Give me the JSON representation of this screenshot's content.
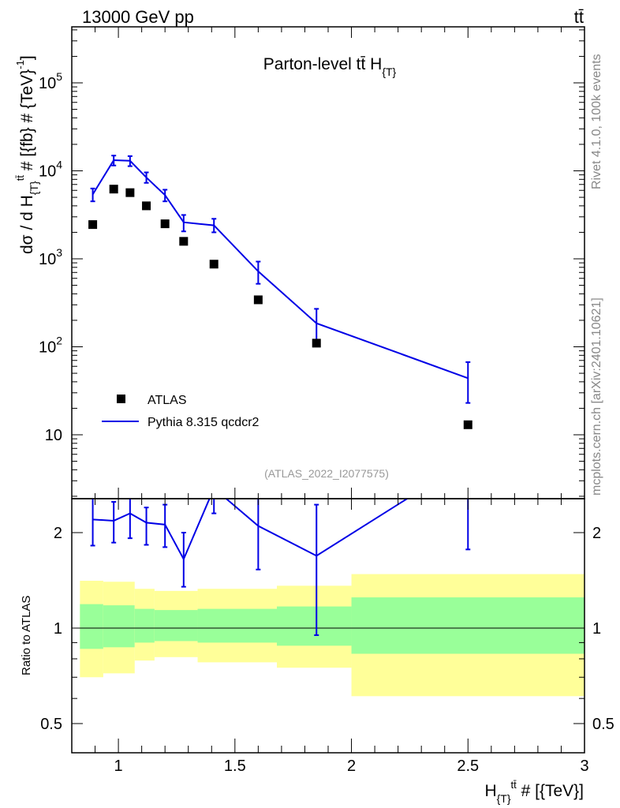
{
  "header": {
    "left": "13000 GeV pp",
    "right": "tt̄"
  },
  "side_labels": {
    "upper": "Rivet 4.1.0,  100k events",
    "lower": "mcplots.cern.ch [arXiv:2401.10621]"
  },
  "colors": {
    "mc_line": "#0000e6",
    "green_band": "#99ff99",
    "yellow_band": "#ffff99",
    "data_marker": "#000000",
    "watermark": "#999999"
  },
  "chart_data": [
    {
      "type": "scatter",
      "title": "Parton-level tt̄  H",
      "title_sub": "{T}",
      "ylabel": "dσ / d H",
      "ylabel_sub": "{T}",
      "ylabel_sup": "tt̄",
      "ylabel_tail": " # [{fb} # {TeV}",
      "ylabel_tail_sup": "-1",
      "ylabel_end": "]",
      "yscale": "log",
      "ylim": [
        2.5,
        400000
      ],
      "xlim": [
        0.8,
        3.0
      ],
      "ytick_labels": [
        "10",
        "10",
        "10",
        "10",
        "10"
      ],
      "ytick_exponents": [
        "",
        "2",
        "3",
        "4",
        "5"
      ],
      "ytick_values": [
        10,
        100,
        1000,
        10000,
        100000
      ],
      "watermark": "(ATLAS_2022_I2077575)",
      "legend": {
        "position": "bottom-left",
        "entries": [
          "ATLAS",
          "Pythia 8.315 qcdcr2"
        ]
      },
      "series": [
        {
          "name": "ATLAS",
          "style": "markers",
          "x": [
            0.89,
            0.98,
            1.05,
            1.12,
            1.2,
            1.28,
            1.41,
            1.6,
            1.85,
            2.5
          ],
          "y": [
            2450,
            6200,
            5650,
            4000,
            2500,
            1580,
            870,
            342,
            110,
            13
          ]
        },
        {
          "name": "Pythia 8.315 qcdcr2",
          "style": "line-errorbars",
          "x": [
            0.89,
            0.98,
            1.05,
            1.12,
            1.2,
            1.28,
            1.41,
            1.6,
            1.85,
            2.5
          ],
          "y": [
            5400,
            13200,
            13000,
            8400,
            5300,
            2600,
            2400,
            720,
            185,
            44
          ],
          "y_low": [
            4500,
            11500,
            11300,
            7300,
            4500,
            2050,
            2000,
            520,
            110,
            23
          ],
          "y_high": [
            6300,
            14900,
            14700,
            9600,
            6100,
            3150,
            2850,
            930,
            270,
            67
          ]
        }
      ]
    },
    {
      "type": "line",
      "ylabel": "Ratio to ATLAS",
      "xlabel": "H",
      "xlabel_sub": "{T}",
      "xlabel_sup": "tt̄",
      "xlabel_tail": " # [{TeV}]",
      "yscale": "log",
      "ylim": [
        0.42,
        2.45
      ],
      "xlim": [
        0.8,
        3.0
      ],
      "xtick_labels": [
        "1",
        "1.5",
        "2",
        "2.5",
        "3"
      ],
      "xtick_values": [
        1,
        1.5,
        2,
        2.5,
        3
      ],
      "ytick_labels": [
        "0.5",
        "1",
        "2"
      ],
      "ytick_values": [
        0.5,
        1,
        2
      ],
      "bands": {
        "edges": [
          0.835,
          0.935,
          1.07,
          1.155,
          1.34,
          1.68,
          2.0,
          3.0
        ],
        "stat_low": [
          0.86,
          0.87,
          0.9,
          0.91,
          0.9,
          0.88,
          0.83
        ],
        "stat_high": [
          1.19,
          1.18,
          1.15,
          1.14,
          1.15,
          1.17,
          1.25
        ],
        "total_low": [
          0.7,
          0.72,
          0.79,
          0.81,
          0.78,
          0.75,
          0.61
        ],
        "total_high": [
          1.41,
          1.4,
          1.33,
          1.31,
          1.33,
          1.36,
          1.48
        ]
      },
      "series": [
        {
          "name": "Pythia 8.315 qcdcr2",
          "x": [
            0.89,
            0.98,
            1.05,
            1.12,
            1.2,
            1.28,
            1.41,
            1.6,
            1.85,
            2.5
          ],
          "y": [
            2.2,
            2.18,
            2.3,
            2.15,
            2.12,
            1.65,
            2.76,
            2.1,
            1.69,
            3.38
          ],
          "y_low": [
            1.82,
            1.86,
            1.92,
            1.83,
            1.8,
            1.35,
            2.3,
            1.53,
            0.95,
            1.77
          ],
          "y_high": [
            2.57,
            2.5,
            2.64,
            2.4,
            2.45,
            2.0,
            3.3,
            2.72,
            2.45,
            5.15
          ]
        }
      ]
    }
  ]
}
